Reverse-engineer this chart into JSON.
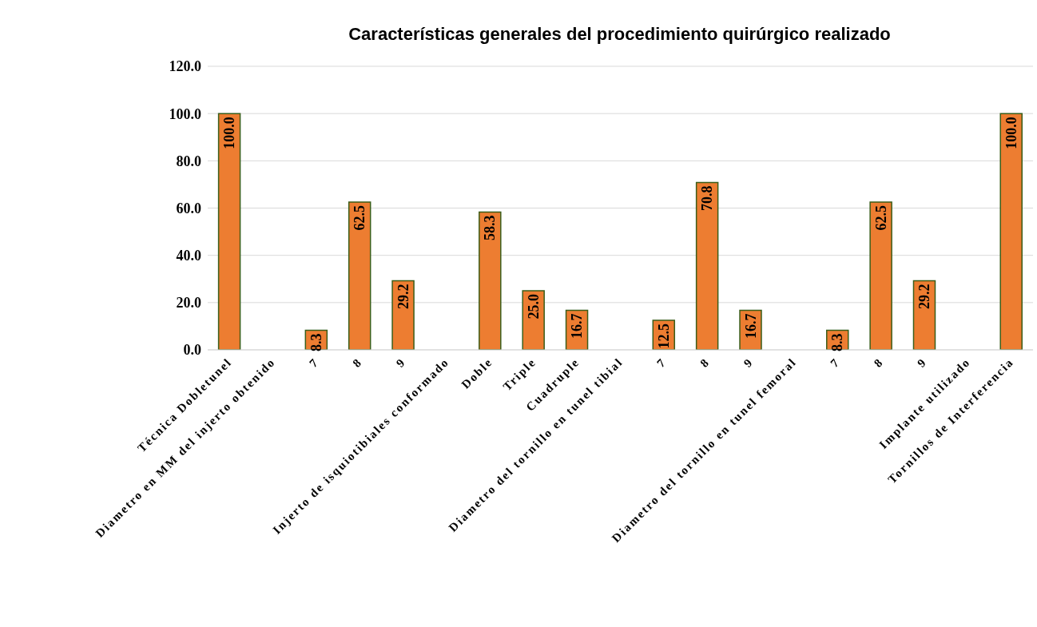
{
  "chart_data": {
    "type": "bar",
    "title": "Características generales del procedimiento quirúrgico realizado",
    "categories": [
      "Técnica Dobletunel",
      "Diametro en MM del injerto obtenido",
      "7",
      "8",
      "9",
      "Injerto de isquiotibiales conformado",
      "Doble",
      "Triple",
      "Cuadruple",
      "Diametro del tornillo en tunel tibial",
      "7",
      "8",
      "9",
      "Diametro del tornillo en tunel femoral",
      "7",
      "8",
      "9",
      "Implante utilizado",
      "Tornillos de Interferencia"
    ],
    "values": [
      100,
      null,
      8.3,
      62.5,
      29.2,
      null,
      58.3,
      25.0,
      16.7,
      null,
      12.5,
      70.8,
      16.7,
      null,
      8.3,
      62.5,
      29.2,
      null,
      100
    ],
    "value_labels": [
      "100.0",
      null,
      "8.3",
      "62.5",
      "29.2",
      null,
      "58.3",
      "25.0",
      "16.7",
      null,
      "12.5",
      "70.8",
      "16.7",
      null,
      "8.3",
      "62.5",
      "29.2",
      null,
      "100.0"
    ],
    "color": "#ed7d31",
    "ylim": [
      0,
      120
    ],
    "yticks": [
      {
        "value": 0,
        "label": "0.0"
      },
      {
        "value": 20,
        "label": "20.0"
      },
      {
        "value": 40,
        "label": "40.0"
      },
      {
        "value": 60,
        "label": "60.0"
      },
      {
        "value": 80,
        "label": "80.0"
      },
      {
        "value": 100,
        "label": "100.0"
      },
      {
        "value": 120,
        "label": "120.0"
      }
    ],
    "grid": "y",
    "legend": false
  }
}
